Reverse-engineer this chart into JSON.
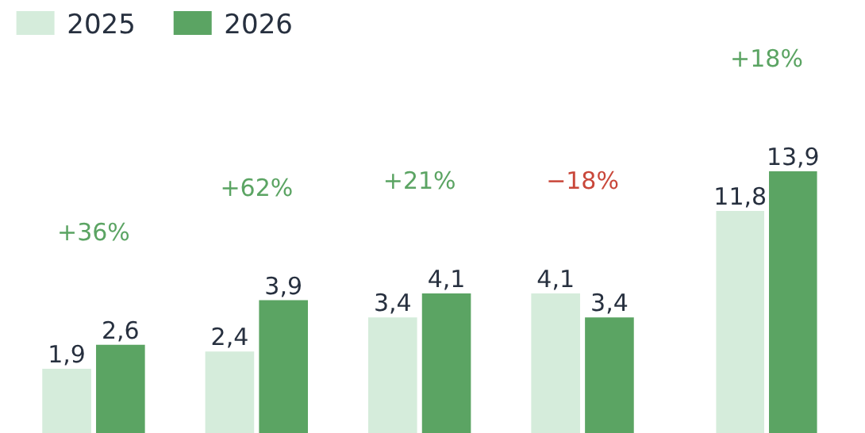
{
  "chart_data": [
    {
      "type": "bar",
      "categories": [
        null,
        null,
        null,
        null
      ],
      "legend": "top left",
      "data_labels": false,
      "series": [
        {
          "name": "2025",
          "color": "#d5ecdb",
          "values": [
            1.9,
            2.4,
            3.4,
            4.1
          ],
          "value_labels": [
            "1,9",
            "2,4",
            "3,4",
            "4,1"
          ]
        },
        {
          "name": "2026",
          "color": "#5ba463",
          "values": [
            2.6,
            3.9,
            4.1,
            3.4
          ],
          "value_labels": [
            "2,6",
            "3,9",
            "4,1",
            "3,4"
          ]
        }
      ],
      "annotations": [
        "+36%",
        "+62%",
        "+21%",
        "−18%"
      ]
    },
    {
      "type": "bar",
      "categories": [
        null
      ],
      "series": [
        {
          "color": "#d5ecdb",
          "values": [
            11.8
          ],
          "value_labels": [
            "11,8"
          ]
        },
        {
          "color": "#5ba463",
          "values": [
            13.9
          ],
          "value_labels": [
            "13,9"
          ]
        }
      ],
      "annotations": [
        "+18%"
      ]
    }
  ]
}
